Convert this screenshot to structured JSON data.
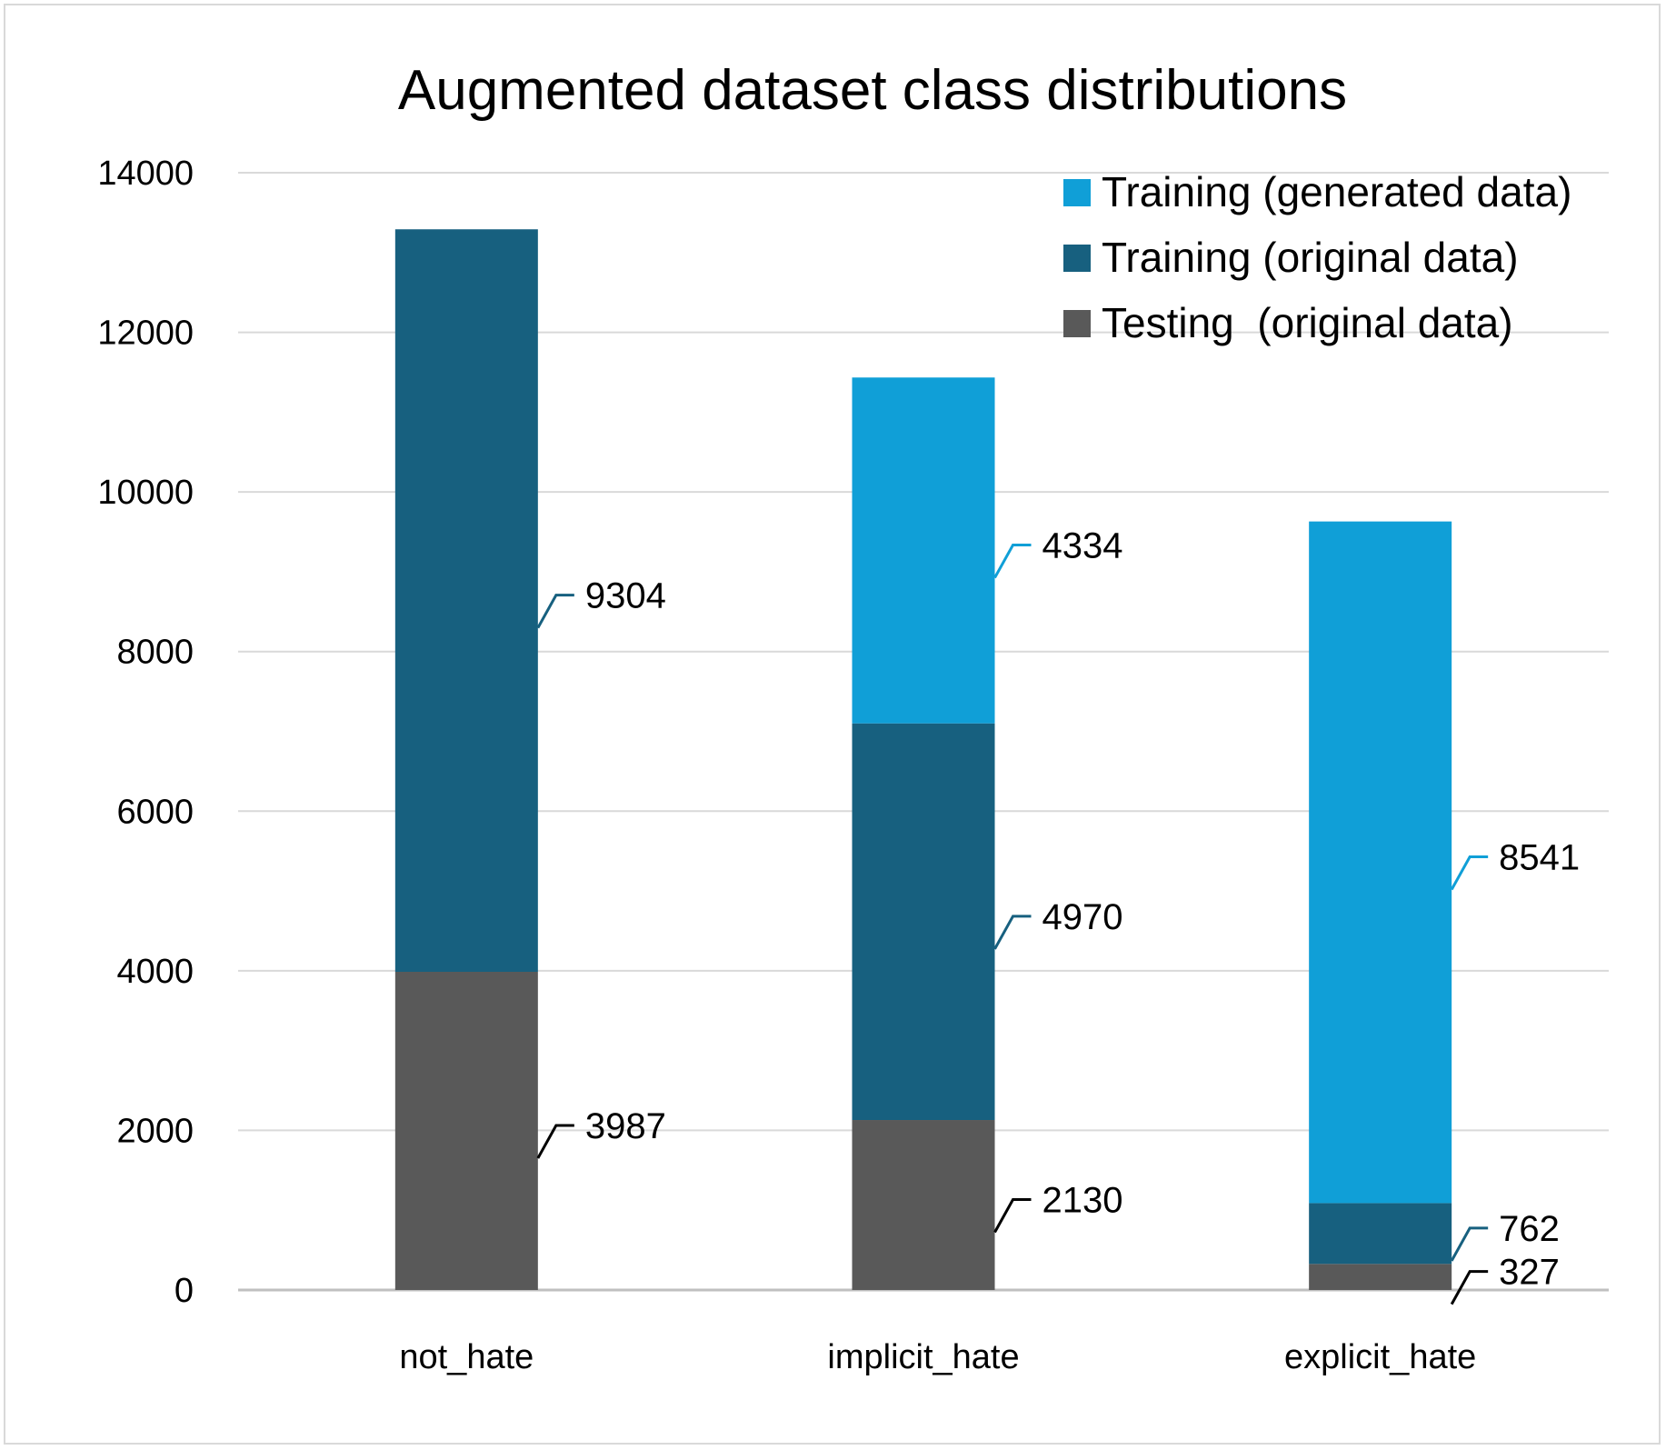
{
  "chart_data": {
    "type": "bar",
    "stacked": true,
    "title": "Augmented dataset class distributions",
    "xlabel": "",
    "ylabel": "",
    "ylim": [
      0,
      14000
    ],
    "yticks": [
      0,
      2000,
      4000,
      6000,
      8000,
      10000,
      12000,
      14000
    ],
    "grid": true,
    "legend_position": "top-right",
    "categories": [
      "not_hate",
      "implicit_hate",
      "explicit_hate"
    ],
    "series": [
      {
        "name": "Testing  (original data)",
        "color": "#595959",
        "values": [
          3987,
          2130,
          327
        ]
      },
      {
        "name": "Training (original data)",
        "color": "#17607f",
        "values": [
          9304,
          4970,
          762
        ]
      },
      {
        "name": "Training (generated data)",
        "color": "#109fd7",
        "values": [
          0,
          4334,
          8541
        ]
      }
    ],
    "legend_order": [
      "Training (generated data)",
      "Training (original data)",
      "Testing  (original data)"
    ]
  }
}
